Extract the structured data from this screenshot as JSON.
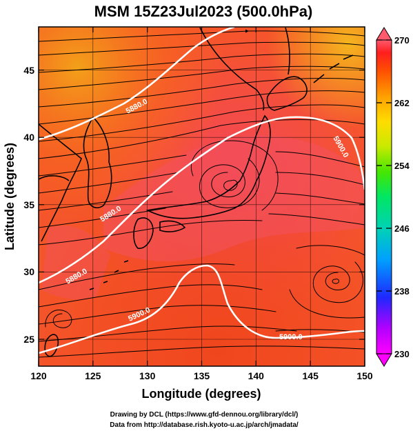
{
  "title": "MSM 15Z23Jul2023 (500.0hPa)",
  "credits": [
    "Drawing by DCL (https://www.gfd-dennou.org/library/dcl/)",
    "Data from http://database.rish.kyoto-u.ac.jp/arch/jmadata/"
  ],
  "map": {
    "type": "contour-map",
    "xlabel": "Longitude (degrees)",
    "ylabel": "Latitude  (degrees)",
    "xlim": [
      120,
      150
    ],
    "ylim": [
      22.4,
      47.6
    ],
    "x_ticks": [
      120,
      125,
      130,
      135,
      140,
      145,
      150
    ],
    "x_tick_labels": [
      "120",
      "125",
      "130",
      "135",
      "140",
      "145",
      "150"
    ],
    "y_ticks": [
      25,
      30,
      35,
      40,
      45
    ],
    "y_tick_labels": [
      "25",
      "30",
      "35",
      "40",
      "45"
    ],
    "grid": true,
    "colorbar": {
      "range": [
        230,
        270
      ],
      "tick_labels": [
        "270",
        "262",
        "254",
        "246",
        "238",
        "230"
      ],
      "colors": [
        "#ff00ff",
        "#b400ff",
        "#1e28ff",
        "#00a0ff",
        "#00d2b4",
        "#00e664",
        "#46e600",
        "#c8ea00",
        "#ffdc00",
        "#ffa000",
        "#ff5000",
        "#ff1e1e",
        "#ff5a6e"
      ],
      "placement": "right"
    },
    "contour_labels": [
      "5880.0",
      "5880.0",
      "5900.0",
      "5880.0",
      "5900.0",
      "5900.0"
    ]
  }
}
